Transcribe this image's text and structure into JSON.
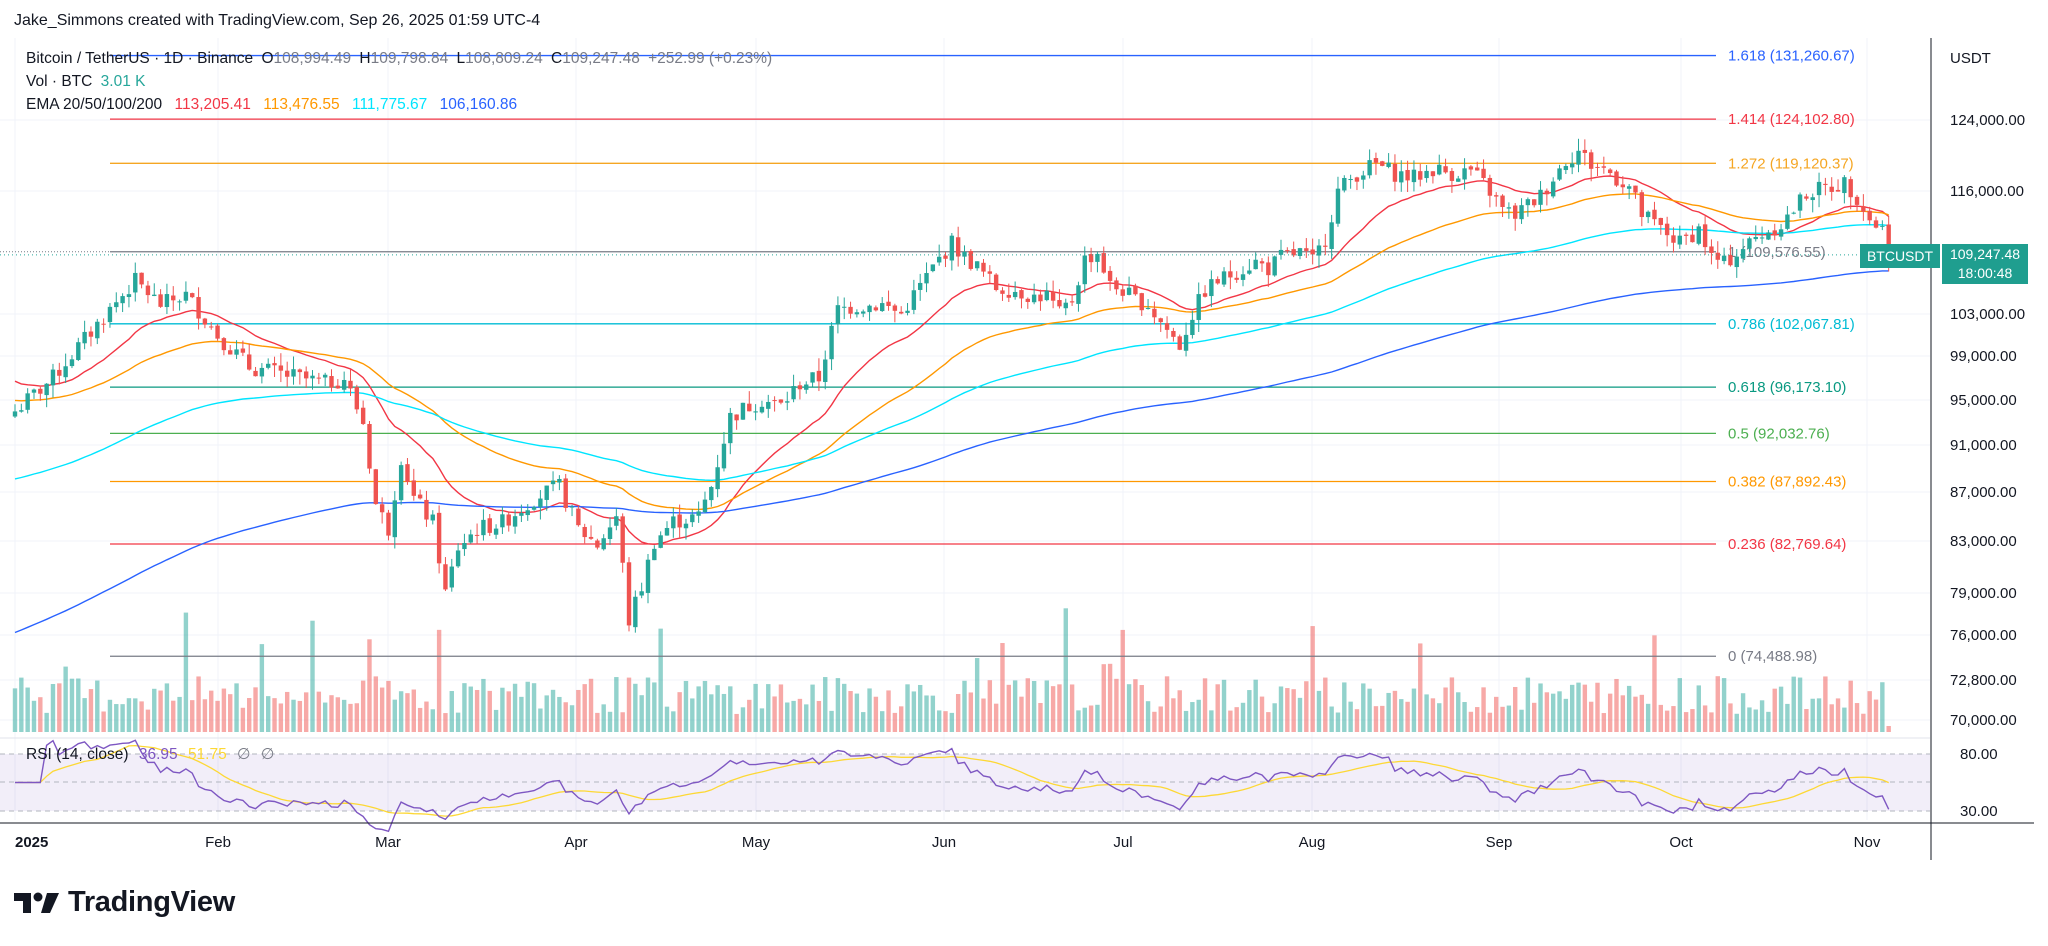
{
  "header": {
    "attribution": "Jake_Simmons created with TradingView.com, Sep 26, 2025 01:59 UTC-4"
  },
  "legend": {
    "symbol": "Bitcoin / TetherUS · 1D · Binance",
    "o_label": "O",
    "o_value": "108,994.49",
    "h_label": "H",
    "h_value": "109,798.84",
    "l_label": "L",
    "l_value": "108,809.24",
    "c_label": "C",
    "c_value": "109,247.48",
    "change": "+252.99 (+0.23%)",
    "vol_label": "Vol · BTC",
    "vol_value": "3.01 K",
    "ema_label": "EMA 20/50/100/200",
    "ema_values": [
      "113,205.41",
      "113,476.55",
      "111,775.67",
      "106,160.86"
    ],
    "rsi_label": "RSI (14, close)",
    "rsi_value": "36.95",
    "rsi_ma": "51.75",
    "rsi_na1": "∅",
    "rsi_na2": "∅"
  },
  "price_axis": {
    "unit": "USDT"
  },
  "current_price": {
    "symbol": "BTCUSDT",
    "value": "109,247.48",
    "countdown": "18:00:48"
  },
  "logo": {
    "text": "TradingView"
  },
  "colors": {
    "up": "#26a69a",
    "down": "#ef5350",
    "ema20": "#f23645",
    "ema50": "#ff9800",
    "ema100": "#00e5ff",
    "ema200": "#2962ff",
    "rsi": "#7e57c2",
    "rsi_ma": "#fdd835"
  },
  "chart_data": {
    "type": "candlestick",
    "price_axis_ticks": [
      124000,
      116000,
      103000,
      99000,
      95000,
      91000,
      87000,
      83000,
      79000,
      76000,
      72800,
      70000
    ],
    "price_axis_labels": [
      "124,000.00",
      "116,000.00",
      "103,000.00",
      "99,000.00",
      "95,000.00",
      "91,000.00",
      "87,000.00",
      "83,000.00",
      "79,000.00",
      "76,000.00",
      "72,800.00",
      "70,000.00"
    ],
    "x_ticks": [
      "2025",
      "Feb",
      "Mar",
      "Apr",
      "May",
      "Jun",
      "Jul",
      "Aug",
      "Sep",
      "Oct",
      "Nov"
    ],
    "fib_levels": [
      {
        "label": "1.618 (131,260.67)",
        "price": 131260.67,
        "color": "#2962ff"
      },
      {
        "label": "1.414 (124,102.80)",
        "price": 124102.8,
        "color": "#f23645"
      },
      {
        "label": "1.272 (119,120.37)",
        "price": 119120.37,
        "color": "#f5a623"
      },
      {
        "label": "1 (109,576.55)",
        "price": 109576.55,
        "color": "#787b86"
      },
      {
        "label": "0.786 (102,067.81)",
        "price": 102067.81,
        "color": "#00bcd4"
      },
      {
        "label": "0.618 (96,173.10)",
        "price": 96173.1,
        "color": "#089981"
      },
      {
        "label": "0.5 (92,032.76)",
        "price": 92032.76,
        "color": "#4caf50"
      },
      {
        "label": "0.382 (87,892.43)",
        "price": 87892.43,
        "color": "#ff9800"
      },
      {
        "label": "0.236 (82,769.64)",
        "price": 82769.64,
        "color": "#f23645"
      },
      {
        "label": "0 (74,488.98)",
        "price": 74488.98,
        "color": "#787b86"
      }
    ],
    "rsi_axis": [
      80,
      30
    ],
    "rsi_axis_labels": [
      "80.00",
      "30.00"
    ],
    "close_anchors": [
      [
        0,
        94000
      ],
      [
        6,
        97000
      ],
      [
        13,
        102000
      ],
      [
        19,
        106500
      ],
      [
        23,
        104000
      ],
      [
        27,
        105000
      ],
      [
        32,
        101000
      ],
      [
        37,
        98000
      ],
      [
        41,
        97500
      ],
      [
        45,
        97000
      ],
      [
        49,
        96500
      ],
      [
        52,
        97000
      ],
      [
        55,
        93000
      ],
      [
        57,
        86000
      ],
      [
        59,
        84000
      ],
      [
        61,
        90000
      ],
      [
        63,
        86500
      ],
      [
        66,
        84500
      ],
      [
        68,
        79000
      ],
      [
        70,
        82500
      ],
      [
        73,
        84000
      ],
      [
        77,
        84500
      ],
      [
        82,
        86500
      ],
      [
        86,
        87500
      ],
      [
        89,
        84000
      ],
      [
        92,
        82700
      ],
      [
        95,
        85000
      ],
      [
        97,
        77000
      ],
      [
        99,
        79500
      ],
      [
        101,
        83000
      ],
      [
        104,
        84600
      ],
      [
        108,
        85000
      ],
      [
        110,
        87500
      ],
      [
        113,
        93500
      ],
      [
        116,
        94500
      ],
      [
        118,
        95000
      ],
      [
        121,
        94500
      ],
      [
        124,
        96500
      ],
      [
        127,
        97000
      ],
      [
        130,
        103500
      ],
      [
        133,
        103800
      ],
      [
        137,
        104000
      ],
      [
        140,
        103000
      ],
      [
        143,
        106000
      ],
      [
        146,
        108800
      ],
      [
        148,
        110500
      ],
      [
        150,
        109000
      ],
      [
        152,
        108000
      ],
      [
        155,
        105800
      ],
      [
        158,
        105500
      ],
      [
        161,
        104800
      ],
      [
        163,
        105000
      ],
      [
        165,
        103000
      ],
      [
        167,
        104500
      ],
      [
        169,
        108800
      ],
      [
        171,
        109500
      ],
      [
        173,
        106000
      ],
      [
        175,
        105500
      ],
      [
        177,
        104500
      ],
      [
        179,
        104000
      ],
      [
        180,
        103000
      ],
      [
        182,
        101500
      ],
      [
        184,
        100000
      ],
      [
        186,
        103000
      ],
      [
        188,
        105500
      ],
      [
        190,
        106500
      ],
      [
        193,
        107500
      ],
      [
        196,
        108500
      ],
      [
        198,
        107800
      ],
      [
        200,
        109000
      ],
      [
        203,
        109500
      ],
      [
        205,
        108500
      ],
      [
        207,
        111000
      ],
      [
        209,
        116000
      ],
      [
        212,
        118000
      ],
      [
        215,
        119000
      ],
      [
        218,
        118000
      ],
      [
        221,
        117500
      ],
      [
        224,
        118500
      ],
      [
        227,
        118000
      ],
      [
        230,
        118300
      ],
      [
        233,
        116000
      ],
      [
        235,
        114000
      ],
      [
        237,
        113500
      ],
      [
        239,
        114500
      ],
      [
        241,
        115500
      ],
      [
        243,
        117500
      ],
      [
        245,
        119500
      ],
      [
        247,
        120500
      ],
      [
        249,
        119000
      ],
      [
        251,
        118500
      ],
      [
        253,
        117500
      ],
      [
        255,
        116500
      ],
      [
        257,
        113500
      ],
      [
        259,
        112500
      ],
      [
        261,
        111500
      ],
      [
        263,
        110500
      ],
      [
        266,
        112000
      ],
      [
        268,
        109000
      ],
      [
        270,
        108300
      ],
      [
        273,
        110000
      ],
      [
        276,
        111500
      ],
      [
        279,
        112500
      ],
      [
        281,
        114000
      ],
      [
        283,
        115800
      ],
      [
        286,
        116300
      ],
      [
        289,
        116900
      ],
      [
        291,
        115500
      ],
      [
        293,
        113000
      ],
      [
        295,
        112000
      ],
      [
        296,
        109200
      ]
    ],
    "ema_labels": [
      "EMA 20",
      "EMA 50",
      "EMA 100",
      "EMA 200"
    ]
  }
}
